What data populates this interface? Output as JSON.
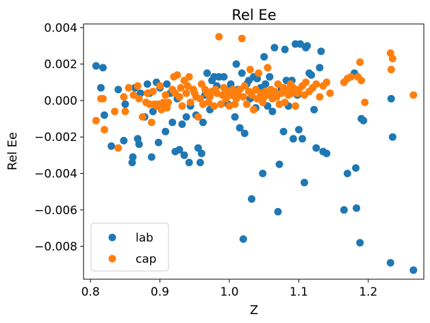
{
  "chart_data": {
    "type": "scatter",
    "title": "Rel Ee",
    "xlabel": "Z",
    "ylabel": "Rel Ee",
    "xlim": [
      0.79,
      1.28
    ],
    "ylim": [
      -0.0098,
      0.0042
    ],
    "xticks": [
      0.8,
      0.9,
      1.0,
      1.1,
      1.2
    ],
    "xtick_labels": [
      "0.8",
      "0.9",
      "1.0",
      "1.1",
      "1.2"
    ],
    "yticks": [
      0.004,
      0.002,
      0.0,
      -0.002,
      -0.004,
      -0.006,
      -0.008
    ],
    "ytick_labels": [
      "0.004",
      "0.002",
      "0.000",
      "−0.002",
      "−0.004",
      "−0.006",
      "−0.008"
    ],
    "grid": false,
    "legend": {
      "placement": "lower-left"
    },
    "series": [
      {
        "name": "lab",
        "color": "#1f77b4",
        "points": [
          [
            0.808,
            0.0019
          ],
          [
            0.818,
            0.0018
          ],
          [
            0.815,
            0.0007
          ],
          [
            0.82,
            -0.0008
          ],
          [
            0.83,
            -0.0025
          ],
          [
            0.84,
            0.0006
          ],
          [
            0.848,
            -0.0022
          ],
          [
            0.85,
            -0.0002
          ],
          [
            0.86,
            -0.0034
          ],
          [
            0.861,
            -0.0031
          ],
          [
            0.864,
            0.0007
          ],
          [
            0.868,
            -0.0021
          ],
          [
            0.87,
            -0.0024
          ],
          [
            0.872,
            0.0004
          ],
          [
            0.878,
            -0.0009
          ],
          [
            0.882,
            0.0009
          ],
          [
            0.885,
            0.0004
          ],
          [
            0.888,
            -0.0031
          ],
          [
            0.89,
            -0.0006
          ],
          [
            0.895,
            0.001
          ],
          [
            0.898,
            -0.0023
          ],
          [
            0.9,
            0.0007
          ],
          [
            0.905,
            -0.0003
          ],
          [
            0.908,
            -0.0017
          ],
          [
            0.91,
            0.0009
          ],
          [
            0.915,
            0.0004
          ],
          [
            0.918,
            -0.0012
          ],
          [
            0.922,
            -0.0028
          ],
          [
            0.925,
            0.0001
          ],
          [
            0.928,
            -0.0027
          ],
          [
            0.932,
            -0.0013
          ],
          [
            0.935,
            -0.003
          ],
          [
            0.938,
            -0.0009
          ],
          [
            0.942,
            -0.0034
          ],
          [
            0.944,
            -0.0003
          ],
          [
            0.948,
            0.0006
          ],
          [
            0.952,
            -0.0008
          ],
          [
            0.955,
            -0.0026
          ],
          [
            0.958,
            -0.0034
          ],
          [
            0.96,
            -0.0029
          ],
          [
            0.962,
            -0.0012
          ],
          [
            0.965,
            0.0003
          ],
          [
            0.968,
            0.0015
          ],
          [
            0.972,
            -0.0005
          ],
          [
            0.975,
            0.0011
          ],
          [
            0.978,
            0.0013
          ],
          [
            0.982,
            0.0008
          ],
          [
            0.985,
            0.0013
          ],
          [
            0.988,
            -0.0002
          ],
          [
            0.992,
            0.0013
          ],
          [
            0.995,
            0.0006
          ],
          [
            0.998,
            -0.0002
          ],
          [
            1.002,
            0.0009
          ],
          [
            1.005,
            0.0003
          ],
          [
            1.008,
            -0.0009
          ],
          [
            1.01,
            0.002
          ],
          [
            1.012,
            0.0006
          ],
          [
            1.015,
            -0.0015
          ],
          [
            1.018,
            0.0015
          ],
          [
            1.02,
            -0.0076
          ],
          [
            1.022,
            -0.0018
          ],
          [
            1.025,
            0.0009
          ],
          [
            1.028,
            0.0011
          ],
          [
            1.03,
            0.0001
          ],
          [
            1.032,
            -0.0054
          ],
          [
            1.035,
            0.0013
          ],
          [
            1.038,
            -0.0004
          ],
          [
            1.04,
            0.0012
          ],
          [
            1.045,
            0.0007
          ],
          [
            1.048,
            -0.004
          ],
          [
            1.05,
            0.0024
          ],
          [
            1.052,
            0.0009
          ],
          [
            1.055,
            -0.0003
          ],
          [
            1.058,
            0.0013
          ],
          [
            1.062,
            -0.0006
          ],
          [
            1.065,
            0.0029
          ],
          [
            1.07,
            -0.0061
          ],
          [
            1.072,
            -0.0035
          ],
          [
            1.075,
            0.0006
          ],
          [
            1.078,
            -0.0017
          ],
          [
            1.08,
            0.0028
          ],
          [
            1.082,
            0.0011
          ],
          [
            1.085,
            -0.0003
          ],
          [
            1.09,
            0.0011
          ],
          [
            1.092,
            -0.0021
          ],
          [
            1.095,
            0.0031
          ],
          [
            1.098,
            0.0003
          ],
          [
            1.1,
            -0.0016
          ],
          [
            1.102,
            0.0031
          ],
          [
            1.105,
            -0.0021
          ],
          [
            1.108,
            -0.0045
          ],
          [
            1.11,
            0.0029
          ],
          [
            1.112,
            0.003
          ],
          [
            1.115,
            0.0015
          ],
          [
            1.118,
            0.0014
          ],
          [
            1.122,
            -0.0005
          ],
          [
            1.125,
            -0.0026
          ],
          [
            1.13,
            0.0018
          ],
          [
            1.132,
            0.0027
          ],
          [
            1.135,
            -0.0028
          ],
          [
            1.14,
            -0.0029
          ],
          [
            1.165,
            -0.006
          ],
          [
            1.17,
            -0.004
          ],
          [
            1.18,
            0.0015
          ],
          [
            1.182,
            -0.0037
          ],
          [
            1.183,
            -0.0059
          ],
          [
            1.188,
            -0.0078
          ],
          [
            1.19,
            -0.001
          ],
          [
            1.193,
            -0.0011
          ],
          [
            1.232,
            -0.0089
          ],
          [
            1.233,
            0.0001
          ],
          [
            1.235,
            -0.002
          ],
          [
            1.265,
            -0.0093
          ]
        ]
      },
      {
        "name": "cap",
        "color": "#ff7f0e",
        "points": [
          [
            0.808,
            -0.0011
          ],
          [
            0.815,
            0.0001
          ],
          [
            0.818,
            0.0001
          ],
          [
            0.82,
            -0.0016
          ],
          [
            0.835,
            -0.0006
          ],
          [
            0.84,
            -0.0026
          ],
          [
            0.848,
            0.0002
          ],
          [
            0.85,
            -0.0006
          ],
          [
            0.855,
            0.0007
          ],
          [
            0.862,
            0.0003
          ],
          [
            0.868,
            0.0008
          ],
          [
            0.87,
            0.0001
          ],
          [
            0.875,
            -0.0009
          ],
          [
            0.88,
            -0.0001
          ],
          [
            0.882,
            0.0004
          ],
          [
            0.885,
            -0.0002
          ],
          [
            0.888,
            -0.0012
          ],
          [
            0.89,
            0.0005
          ],
          [
            0.892,
            -0.0002
          ],
          [
            0.895,
            -0.0003
          ],
          [
            0.898,
            -0.0002
          ],
          [
            0.9,
            0.0008
          ],
          [
            0.902,
            -0.0005
          ],
          [
            0.905,
            -0.0001
          ],
          [
            0.908,
            0.0003
          ],
          [
            0.91,
            -0.0004
          ],
          [
            0.912,
            -0.0001
          ],
          [
            0.918,
            0.0006
          ],
          [
            0.92,
            0.0013
          ],
          [
            0.922,
            0.0004
          ],
          [
            0.925,
            0.0014
          ],
          [
            0.928,
            0.0002
          ],
          [
            0.93,
            0.0007
          ],
          [
            0.932,
            -0.0003
          ],
          [
            0.935,
            0.0011
          ],
          [
            0.938,
            0.0004
          ],
          [
            0.94,
            0.0008
          ],
          [
            0.942,
            0.0013
          ],
          [
            0.944,
            -0.0001
          ],
          [
            0.948,
            0.0006
          ],
          [
            0.95,
            0.0004
          ],
          [
            0.952,
            0.0002
          ],
          [
            0.955,
            -0.0009
          ],
          [
            0.958,
            0.0001
          ],
          [
            0.96,
            0.0009
          ],
          [
            0.962,
            -0.0002
          ],
          [
            0.965,
            0.0006
          ],
          [
            0.968,
            0.0004
          ],
          [
            0.97,
            -0.0001
          ],
          [
            0.972,
            0.0002
          ],
          [
            0.975,
            0.0005
          ],
          [
            0.978,
            -0.0003
          ],
          [
            0.98,
            0.0006
          ],
          [
            0.982,
            0.0004
          ],
          [
            0.985,
            0.0035
          ],
          [
            0.988,
            -0.0002
          ],
          [
            0.99,
            0.0003
          ],
          [
            0.992,
            0.0007
          ],
          [
            0.995,
            0.0001
          ],
          [
            0.998,
            0.0005
          ],
          [
            1.0,
            -0.0003
          ],
          [
            1.002,
            0.0003
          ],
          [
            1.005,
            0.0006
          ],
          [
            1.008,
            -0.0002
          ],
          [
            1.01,
            0.0001
          ],
          [
            1.012,
            0.0004
          ],
          [
            1.015,
            0.0006
          ],
          [
            1.018,
            0.0034
          ],
          [
            1.02,
            0.0002
          ],
          [
            1.022,
            0.0008
          ],
          [
            1.025,
            -0.0002
          ],
          [
            1.028,
            0.0005
          ],
          [
            1.03,
            0.0017
          ],
          [
            1.032,
            0.0003
          ],
          [
            1.035,
            -0.0005
          ],
          [
            1.038,
            0.0006
          ],
          [
            1.04,
            0.0001
          ],
          [
            1.042,
            0.0015
          ],
          [
            1.045,
            0.0004
          ],
          [
            1.048,
            -0.0001
          ],
          [
            1.05,
            0.0002
          ],
          [
            1.052,
            0.0005
          ],
          [
            1.055,
            0.0018
          ],
          [
            1.058,
            0.0003
          ],
          [
            1.06,
            0.0006
          ],
          [
            1.062,
            0.0001
          ],
          [
            1.065,
            0.0005
          ],
          [
            1.068,
            0.0002
          ],
          [
            1.07,
            0.0009
          ],
          [
            1.072,
            -0.0002
          ],
          [
            1.075,
            0.0004
          ],
          [
            1.078,
            0.0007
          ],
          [
            1.08,
            -0.0001
          ],
          [
            1.082,
            0.0006
          ],
          [
            1.085,
            0.0003
          ],
          [
            1.088,
            0.0009
          ],
          [
            1.09,
            0.0004
          ],
          [
            1.092,
            0.0007
          ],
          [
            1.095,
            -0.0003
          ],
          [
            1.098,
            0.0004
          ],
          [
            1.1,
            0.0006
          ],
          [
            1.105,
            0.0008
          ],
          [
            1.108,
            0.0003
          ],
          [
            1.11,
            0.001
          ],
          [
            1.115,
            0.0005
          ],
          [
            1.12,
            0.0007
          ],
          [
            1.125,
            0.0009
          ],
          [
            1.13,
            0.0002
          ],
          [
            1.135,
            0.0008
          ],
          [
            1.14,
            0.001
          ],
          [
            1.145,
            0.0004
          ],
          [
            1.165,
            0.001
          ],
          [
            1.17,
            0.0012
          ],
          [
            1.175,
            0.0013
          ],
          [
            1.185,
            0.0013
          ],
          [
            1.188,
            0.0021
          ],
          [
            1.19,
            0.0011
          ],
          [
            1.195,
            -0.0001
          ],
          [
            1.232,
            0.0026
          ],
          [
            1.233,
            0.0017
          ],
          [
            1.235,
            0.0023
          ],
          [
            1.265,
            0.0003
          ]
        ]
      }
    ]
  }
}
